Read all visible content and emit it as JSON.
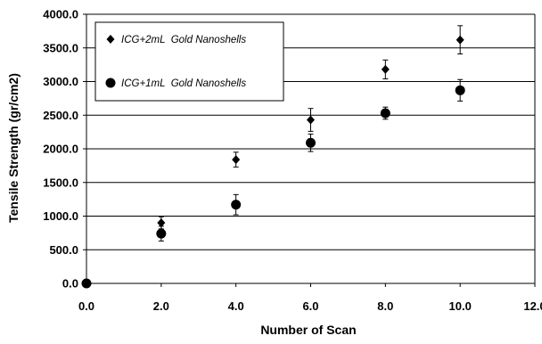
{
  "chart_data": {
    "type": "scatter",
    "xlabel": "Number of Scan",
    "ylabel": "Tensile Strength (gr/cm2)",
    "xlim": [
      0,
      12
    ],
    "ylim": [
      0,
      4000
    ],
    "x_ticks": [
      0,
      2,
      4,
      6,
      8,
      10,
      12
    ],
    "y_ticks": [
      0,
      500,
      1000,
      1500,
      2000,
      2500,
      3000,
      3500,
      4000
    ],
    "x_tick_labels": [
      "0.0",
      "2.0",
      "4.0",
      "6.0",
      "8.0",
      "10.0",
      "12.0"
    ],
    "y_tick_labels": [
      "0.0",
      "500.0",
      "1000.0",
      "1500.0",
      "2000.0",
      "2500.0",
      "3000.0",
      "3500.0",
      "4000.0"
    ],
    "grid": "horizontal",
    "legend_position": "top-left",
    "series": [
      {
        "name": "ICG+2mL  Gold Nanoshells",
        "marker": "diamond",
        "color": "#000000",
        "points": [
          {
            "x": 0,
            "y": 0,
            "err": 0
          },
          {
            "x": 2,
            "y": 900,
            "err": 90
          },
          {
            "x": 4,
            "y": 1840,
            "err": 110
          },
          {
            "x": 6,
            "y": 2430,
            "err": 170
          },
          {
            "x": 8,
            "y": 3180,
            "err": 140
          },
          {
            "x": 10,
            "y": 3620,
            "err": 210
          }
        ]
      },
      {
        "name": "ICG+1mL  Gold Nanoshells",
        "marker": "circle",
        "color": "#000000",
        "points": [
          {
            "x": 0,
            "y": 0,
            "err": 0
          },
          {
            "x": 2,
            "y": 740,
            "err": 110
          },
          {
            "x": 4,
            "y": 1170,
            "err": 150
          },
          {
            "x": 6,
            "y": 2090,
            "err": 130
          },
          {
            "x": 8,
            "y": 2530,
            "err": 90
          },
          {
            "x": 10,
            "y": 2870,
            "err": 160
          }
        ]
      }
    ]
  }
}
